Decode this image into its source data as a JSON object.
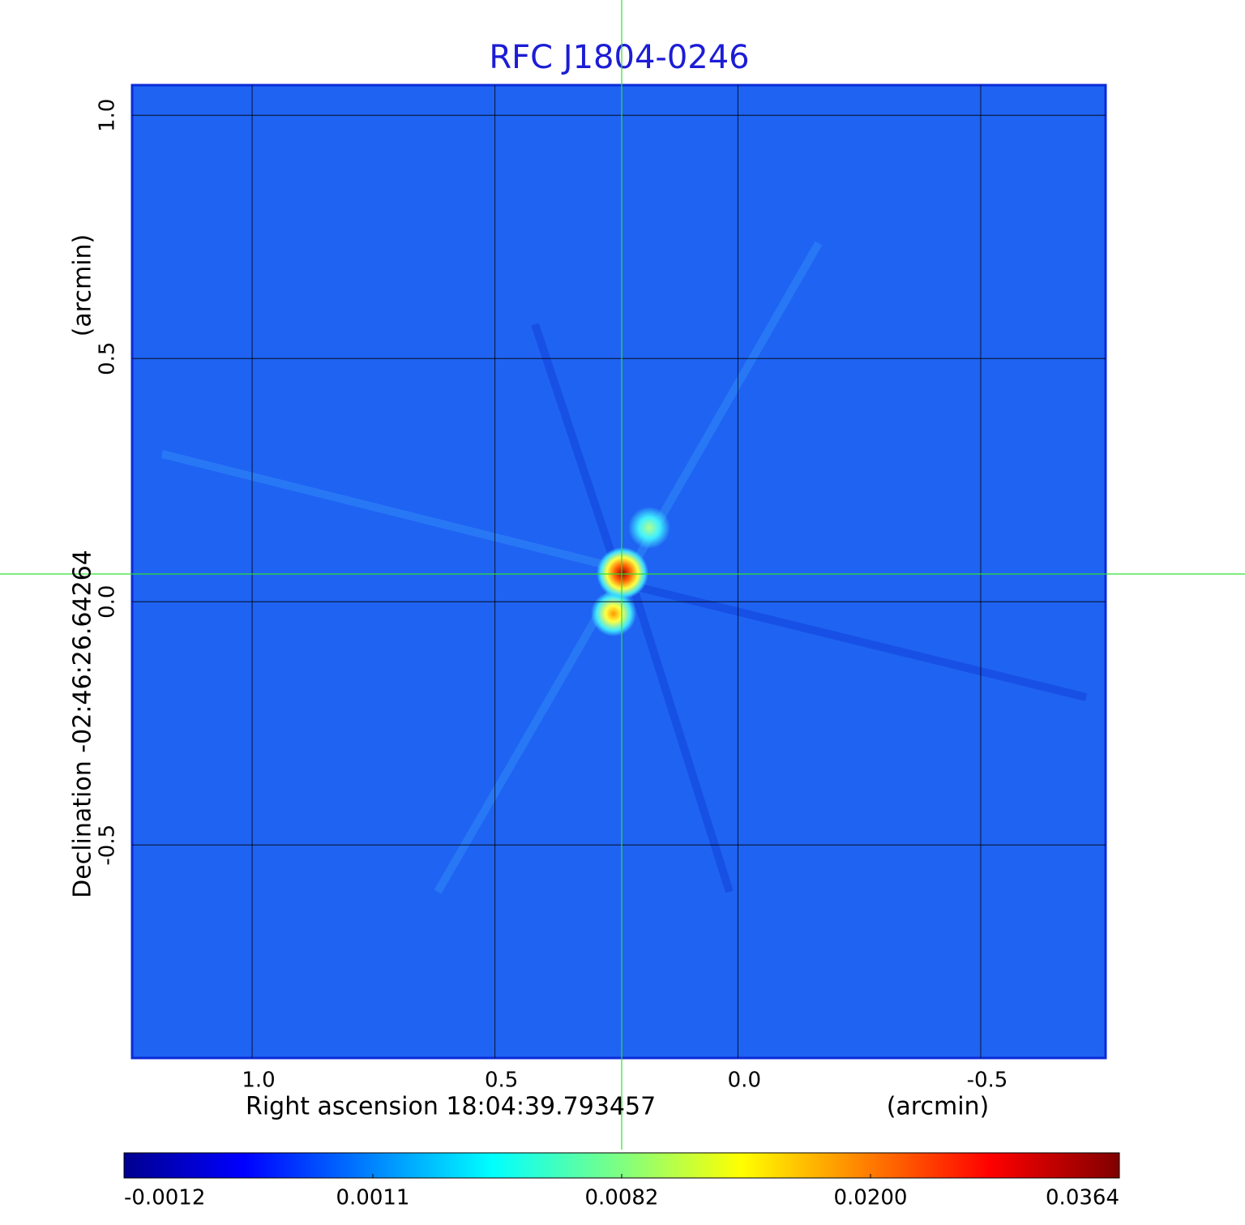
{
  "chart_data": {
    "type": "image",
    "title": "RFC J1804-0246",
    "x_label": "Right ascension  18:04:39.793457",
    "x_unit": "(arcmin)",
    "y_label": "Declination  -02:46:26.64264",
    "y_unit": "(arcmin)",
    "xlim": [
      1.247,
      -0.757
    ],
    "ylim": [
      -0.938,
      1.062
    ],
    "xticks": [
      {
        "value": 1,
        "label": "1.0"
      },
      0.5,
      {
        "value": 0,
        "label": "0.0"
      },
      -0.5
    ],
    "yticks": [
      {
        "value": 1,
        "label": "1.0"
      },
      0.5,
      {
        "value": 0,
        "label": "0.0"
      },
      -0.5
    ],
    "grid": true,
    "colormap": "jet",
    "clim": [
      -0.0012,
      0.0364
    ],
    "colorbar_ticks": [
      -0.0012,
      0.0011,
      0.0082,
      {
        "value": 0.02,
        "label": "0.0200"
      },
      0.0364
    ]
  }
}
